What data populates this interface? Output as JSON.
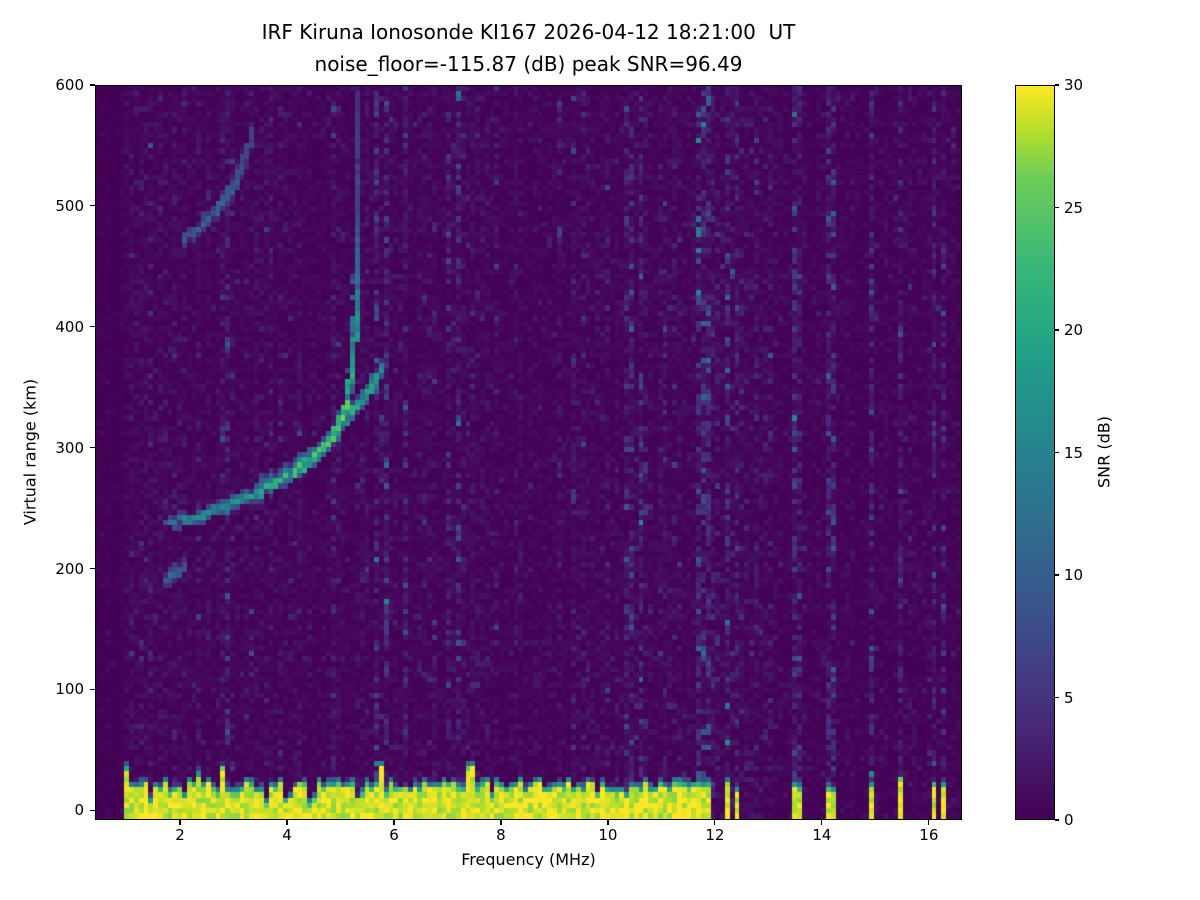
{
  "chart_data": {
    "type": "heatmap",
    "title": "IRF Kiruna Ionosonde KI167 2026-04-12 18:21:00  UT",
    "subtitle": "noise_floor=-115.87 (dB) peak SNR=96.49",
    "station": "KI167",
    "timestamp_ut": "2026-04-12 18:21:00",
    "noise_floor_db": -115.87,
    "peak_snr_db": 96.49,
    "xlabel": "Frequency (MHz)",
    "ylabel": "Virtual range (km)",
    "xlim": [
      0.41,
      16.62
    ],
    "ylim": [
      -8,
      600
    ],
    "x_ticks": [
      2,
      4,
      6,
      8,
      10,
      12,
      14,
      16
    ],
    "y_ticks": [
      0,
      100,
      200,
      300,
      400,
      500,
      600
    ],
    "colorbar": {
      "label": "SNR (dB)",
      "min": 0,
      "max": 30,
      "ticks": [
        0,
        5,
        10,
        15,
        20,
        25,
        30
      ],
      "colormap": "viridis"
    },
    "colormap_stops": [
      [
        0,
        68,
        1,
        84
      ],
      [
        0.125,
        72,
        40,
        120
      ],
      [
        0.25,
        62,
        74,
        137
      ],
      [
        0.375,
        49,
        104,
        142
      ],
      [
        0.5,
        38,
        130,
        142
      ],
      [
        0.625,
        31,
        158,
        137
      ],
      [
        0.75,
        53,
        183,
        121
      ],
      [
        0.875,
        109,
        205,
        89
      ],
      [
        0.9375,
        180,
        222,
        44
      ],
      [
        1,
        253,
        231,
        37
      ]
    ],
    "heatmap": {
      "seed": 1167,
      "grid": {
        "nx": 180,
        "ny": 140
      },
      "data_f_start": 0.95,
      "ground_band": {
        "f_end": 11.64,
        "top_km": 24,
        "fringe_km": 7,
        "snr_db": 30
      },
      "rfi_dense_range": [
        11.66,
        13.12
      ],
      "rfi_spike_freqs": [
        13.47,
        13.58,
        14.12,
        14.27,
        14.97,
        15.52,
        16.12,
        16.3
      ],
      "noisy_columns": [
        2.85,
        6.25,
        7.05,
        9.35,
        10.45,
        11.1
      ],
      "traces": [
        {
          "name": "F-layer-ordinary",
          "amp_scale": 1.25,
          "points": [
            [
              1.75,
              236,
              8
            ],
            [
              2.0,
              239,
              10
            ],
            [
              2.3,
              243,
              11
            ],
            [
              2.6,
              247,
              11
            ],
            [
              2.9,
              252,
              12
            ],
            [
              3.2,
              257,
              12
            ],
            [
              3.5,
              263,
              13
            ],
            [
              3.8,
              270,
              14
            ],
            [
              4.1,
              278,
              15
            ],
            [
              4.4,
              288,
              16
            ],
            [
              4.7,
              300,
              17
            ],
            [
              4.9,
              313,
              17
            ],
            [
              5.05,
              327,
              17
            ],
            [
              5.15,
              344,
              16
            ],
            [
              5.22,
              365,
              14
            ],
            [
              5.26,
              392,
              12
            ],
            [
              5.29,
              425,
              10
            ],
            [
              5.3,
              458,
              7
            ],
            [
              5.31,
              505,
              5
            ],
            [
              5.32,
              555,
              4
            ],
            [
              5.33,
              595,
              3
            ]
          ]
        },
        {
          "name": "F-layer-extraordinary",
          "amp_scale": 1.25,
          "points": [
            [
              3.45,
              267,
              8
            ],
            [
              3.8,
              275,
              9
            ],
            [
              4.15,
              284,
              10
            ],
            [
              4.5,
              295,
              12
            ],
            [
              4.8,
              307,
              13
            ],
            [
              5.05,
              319,
              14
            ],
            [
              5.3,
              332,
              14
            ],
            [
              5.5,
              345,
              13
            ],
            [
              5.65,
              357,
              12
            ],
            [
              5.76,
              366,
              10
            ],
            [
              5.83,
              373,
              8
            ]
          ]
        },
        {
          "name": "second-hop-echo",
          "amp_scale": 1.25,
          "points": [
            [
              2.05,
              472,
              6
            ],
            [
              2.3,
              480,
              7
            ],
            [
              2.6,
              492,
              7
            ],
            [
              2.9,
              508,
              7
            ],
            [
              3.1,
              526,
              6
            ],
            [
              3.25,
              545,
              5
            ],
            [
              3.38,
              565,
              4
            ]
          ]
        },
        {
          "name": "E-region-echo",
          "amp_scale": 1.25,
          "points": [
            [
              1.72,
              188,
              6
            ],
            [
              1.85,
              193,
              8
            ],
            [
              2.0,
              197,
              6
            ],
            [
              2.12,
              201,
              4
            ]
          ]
        }
      ]
    }
  }
}
